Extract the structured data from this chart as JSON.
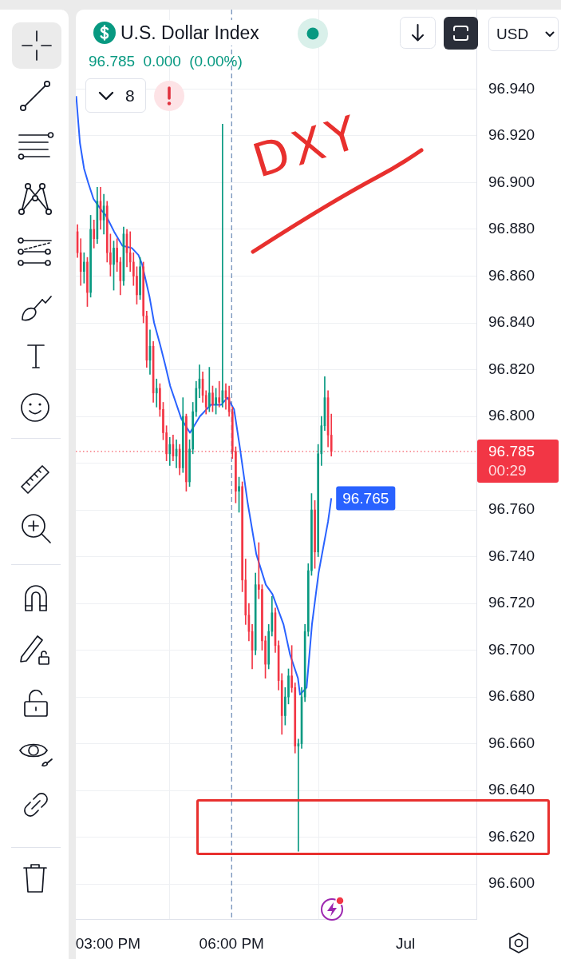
{
  "chart_data": {
    "type": "candlestick",
    "title": "U.S. Dollar Index",
    "subtitle": "96.785 0.000 (0.00%)",
    "x": [
      14.26,
      14.34,
      14.42,
      14.5,
      14.58,
      14.66,
      14.74,
      14.82,
      14.9,
      14.98,
      15.06,
      15.14,
      15.22,
      15.3,
      15.38,
      15.46,
      15.54,
      15.62,
      15.7,
      15.78,
      15.86,
      15.94,
      16.02,
      16.1,
      16.18,
      16.26,
      16.34,
      16.42,
      16.5,
      16.58,
      16.66,
      16.74,
      16.82,
      16.9,
      16.98,
      17.06,
      17.14,
      17.22,
      17.3,
      17.38,
      17.46,
      17.54,
      17.62,
      17.7,
      17.78,
      17.86,
      17.94,
      18.02,
      18.1,
      18.18,
      18.26,
      18.34,
      18.42,
      18.5,
      18.58,
      18.66,
      18.74,
      18.82,
      18.9,
      18.98,
      19.06,
      19.14,
      19.22,
      19.3,
      19.38,
      19.46,
      19.54,
      19.62,
      19.7,
      19.78,
      19.86,
      19.94,
      20.02,
      20.1,
      20.18,
      20.26,
      20.34,
      20.42
    ],
    "ohlc": [
      [
        96.879,
        96.882,
        96.868,
        96.87
      ],
      [
        96.87,
        96.876,
        96.856,
        96.862
      ],
      [
        96.862,
        96.87,
        96.857,
        96.866
      ],
      [
        96.866,
        96.868,
        96.847,
        96.853
      ],
      [
        96.853,
        96.886,
        96.851,
        96.88
      ],
      [
        96.88,
        96.884,
        96.872,
        96.876
      ],
      [
        96.876,
        96.898,
        96.874,
        96.892
      ],
      [
        96.892,
        96.898,
        96.88,
        96.884
      ],
      [
        96.884,
        96.895,
        96.878,
        96.89
      ],
      [
        96.89,
        96.892,
        96.866,
        96.87
      ],
      [
        96.87,
        96.878,
        96.86,
        96.865
      ],
      [
        96.865,
        96.875,
        96.854,
        96.872
      ],
      [
        96.872,
        96.876,
        96.862,
        96.866
      ],
      [
        96.866,
        96.868,
        96.852,
        96.858
      ],
      [
        96.858,
        96.881,
        96.856,
        96.878
      ],
      [
        96.878,
        96.88,
        96.864,
        96.87
      ],
      [
        96.87,
        96.879,
        96.862,
        96.866
      ],
      [
        96.866,
        96.87,
        96.856,
        96.86
      ],
      [
        96.86,
        96.864,
        96.848,
        96.852
      ],
      [
        96.852,
        96.868,
        96.85,
        96.864
      ],
      [
        96.864,
        96.866,
        96.84,
        96.843
      ],
      [
        96.843,
        96.845,
        96.821,
        96.824
      ],
      [
        96.824,
        96.837,
        96.818,
        96.83
      ],
      [
        96.83,
        96.832,
        96.806,
        96.81
      ],
      [
        96.81,
        96.816,
        96.804,
        96.812
      ],
      [
        96.812,
        96.814,
        96.8,
        96.803
      ],
      [
        96.803,
        96.806,
        96.79,
        96.793
      ],
      [
        96.793,
        96.796,
        96.781,
        96.784
      ],
      [
        96.784,
        96.791,
        96.779,
        96.788
      ],
      [
        96.788,
        96.792,
        96.781,
        96.783
      ],
      [
        96.783,
        96.79,
        96.778,
        96.786
      ],
      [
        96.786,
        96.788,
        96.775,
        96.778
      ],
      [
        96.778,
        96.808,
        96.776,
        96.8
      ],
      [
        96.8,
        96.801,
        96.768,
        96.772
      ],
      [
        96.772,
        96.79,
        96.77,
        96.786
      ],
      [
        96.786,
        96.806,
        96.784,
        96.802
      ],
      [
        96.802,
        96.815,
        96.8,
        96.812
      ],
      [
        96.812,
        96.822,
        96.808,
        96.816
      ],
      [
        96.816,
        96.819,
        96.806,
        96.809
      ],
      [
        96.809,
        96.811,
        96.801,
        96.804
      ],
      [
        96.804,
        96.821,
        96.802,
        96.81
      ],
      [
        96.81,
        96.813,
        96.802,
        96.805
      ],
      [
        96.805,
        96.812,
        96.801,
        96.808
      ],
      [
        96.808,
        96.815,
        96.804,
        96.806
      ],
      [
        96.806,
        96.925,
        96.804,
        96.811
      ],
      [
        96.811,
        96.814,
        96.803,
        96.808
      ],
      [
        96.808,
        96.813,
        96.8,
        96.802
      ],
      [
        96.802,
        96.804,
        96.782,
        96.785
      ],
      [
        96.785,
        96.787,
        96.763,
        96.768
      ],
      [
        96.768,
        96.774,
        96.759,
        96.77
      ],
      [
        96.77,
        96.772,
        96.725,
        96.73
      ],
      [
        96.73,
        96.739,
        96.711,
        96.715
      ],
      [
        96.715,
        96.72,
        96.704,
        96.708
      ],
      [
        96.708,
        96.711,
        96.692,
        96.7
      ],
      [
        96.7,
        96.733,
        96.698,
        96.728
      ],
      [
        96.728,
        96.746,
        96.722,
        96.726
      ],
      [
        96.726,
        96.728,
        96.7,
        96.704
      ],
      [
        96.704,
        96.706,
        96.688,
        96.694
      ],
      [
        96.694,
        96.711,
        96.692,
        96.708
      ],
      [
        96.708,
        96.723,
        96.706,
        96.716
      ],
      [
        96.716,
        96.718,
        96.699,
        96.702
      ],
      [
        96.702,
        96.704,
        96.683,
        96.687
      ],
      [
        96.687,
        96.69,
        96.664,
        96.672
      ],
      [
        96.672,
        96.684,
        96.668,
        96.68
      ],
      [
        96.68,
        96.692,
        96.677,
        96.689
      ],
      [
        96.689,
        96.702,
        96.682,
        96.684
      ],
      [
        96.684,
        96.686,
        96.656,
        96.659
      ],
      [
        96.659,
        96.662,
        96.614,
        96.66
      ],
      [
        96.66,
        96.684,
        96.658,
        96.68
      ],
      [
        96.68,
        96.711,
        96.678,
        96.708
      ],
      [
        96.708,
        96.737,
        96.706,
        96.734
      ],
      [
        96.734,
        96.767,
        96.732,
        96.76
      ],
      [
        96.76,
        96.764,
        96.735,
        96.742
      ],
      [
        96.742,
        96.788,
        96.74,
        96.784
      ],
      [
        96.784,
        96.8,
        96.779,
        96.796
      ],
      [
        96.796,
        96.817,
        96.794,
        96.808
      ],
      [
        96.808,
        96.811,
        96.787,
        96.792
      ],
      [
        96.792,
        96.801,
        96.783,
        96.785
      ]
    ],
    "colors": [
      "#f23645",
      "#f23645",
      "#089981",
      "#f23645",
      "#089981",
      "#f23645",
      "#089981",
      "#f23645",
      "#089981",
      "#f23645",
      "#f23645",
      "#089981",
      "#f23645",
      "#f23645",
      "#089981",
      "#f23645",
      "#f23645",
      "#f23645",
      "#f23645",
      "#089981",
      "#f23645",
      "#f23645",
      "#089981",
      "#f23645",
      "#089981",
      "#f23645",
      "#f23645",
      "#f23645",
      "#089981",
      "#f23645",
      "#089981",
      "#f23645",
      "#089981",
      "#f23645",
      "#089981",
      "#089981",
      "#089981",
      "#089981",
      "#f23645",
      "#f23645",
      "#089981",
      "#f23645",
      "#089981",
      "#f23645",
      "#089981",
      "#f23645",
      "#f23645",
      "#f23645",
      "#f23645",
      "#089981",
      "#f23645",
      "#f23645",
      "#f23645",
      "#f23645",
      "#089981",
      "#f23645",
      "#f23645",
      "#f23645",
      "#089981",
      "#089981",
      "#f23645",
      "#f23645",
      "#f23645",
      "#089981",
      "#089981",
      "#f23645",
      "#f23645",
      "#089981",
      "#089981",
      "#089981",
      "#089981",
      "#089981",
      "#f23645",
      "#089981",
      "#089981",
      "#089981",
      "#f23645",
      "#f23645"
    ],
    "series": [
      {
        "type": "line",
        "color": "#2962ff",
        "x": [
          14.23,
          14.32,
          14.42,
          14.52,
          14.65,
          14.85,
          14.95,
          15.15,
          15.35,
          15.58,
          15.74,
          15.83,
          16.01,
          16.12,
          16.26,
          16.39,
          16.51,
          16.78,
          16.99,
          17.23,
          17.5,
          17.75,
          17.9,
          18.06,
          18.19,
          18.39,
          18.6,
          18.83,
          18.99,
          19.26,
          19.42,
          19.61,
          19.66,
          19.82,
          19.95,
          20.11,
          20.34,
          20.42
        ],
        "values": [
          96.937,
          96.917,
          96.906,
          96.9,
          96.893,
          96.888,
          96.886,
          96.879,
          96.873,
          96.872,
          96.869,
          96.865,
          96.851,
          96.84,
          96.831,
          96.822,
          96.813,
          96.799,
          96.793,
          96.8,
          96.805,
          96.805,
          96.808,
          96.803,
          96.788,
          96.763,
          96.741,
          96.728,
          96.724,
          96.711,
          96.698,
          96.688,
          96.681,
          96.684,
          96.711,
          96.733,
          96.755,
          96.765
        ],
        "value_labels": [
          null,
          null,
          null,
          null,
          null,
          null,
          null,
          null,
          null,
          null,
          null,
          null,
          null,
          null,
          null,
          null,
          null,
          null,
          null,
          null,
          null,
          null,
          null,
          null,
          null,
          null,
          null,
          null,
          null,
          null,
          null,
          null,
          null,
          null,
          null,
          null,
          null,
          "96.765"
        ]
      }
    ],
    "xlim": [
      14.22,
      23.94
    ],
    "xticks": [
      {
        "value": 15,
        "label": "03:00 PM"
      },
      {
        "value": 18,
        "label": "06:00 PM"
      },
      {
        "value": 22.22,
        "label": "Jul"
      }
    ],
    "ylim": [
      96.585,
      96.974
    ],
    "yticks": [
      {
        "value": 96.6,
        "label": "96.600"
      },
      {
        "value": 96.62,
        "label": "96.620"
      },
      {
        "value": 96.64,
        "label": "96.640"
      },
      {
        "value": 96.66,
        "label": "96.660"
      },
      {
        "value": 96.68,
        "label": "96.680"
      },
      {
        "value": 96.7,
        "label": "96.700"
      },
      {
        "value": 96.72,
        "label": "96.720"
      },
      {
        "value": 96.74,
        "label": "96.740"
      },
      {
        "value": 96.76,
        "label": "96.760"
      },
      {
        "value": 96.78,
        "label": null
      },
      {
        "value": 96.8,
        "label": "96.800"
      },
      {
        "value": 96.82,
        "label": "96.820"
      },
      {
        "value": 96.84,
        "label": "96.840"
      },
      {
        "value": 96.86,
        "label": "96.860"
      },
      {
        "value": 96.88,
        "label": "96.880"
      },
      {
        "value": 96.9,
        "label": "96.900"
      },
      {
        "value": 96.92,
        "label": "96.920"
      },
      {
        "value": 96.94,
        "label": "96.940"
      }
    ],
    "grid": true,
    "ref_lines": [
      {
        "axis": "y",
        "value": 96.785,
        "label": "96.785\n00:29",
        "color": "#f23645",
        "line_style": "dotted"
      },
      {
        "axis": "x",
        "value": 18,
        "color": "#4a6fa5",
        "line_style": "dashed"
      }
    ],
    "annotations": [
      "DXY",
      "8",
      "USD"
    ]
  }
}
